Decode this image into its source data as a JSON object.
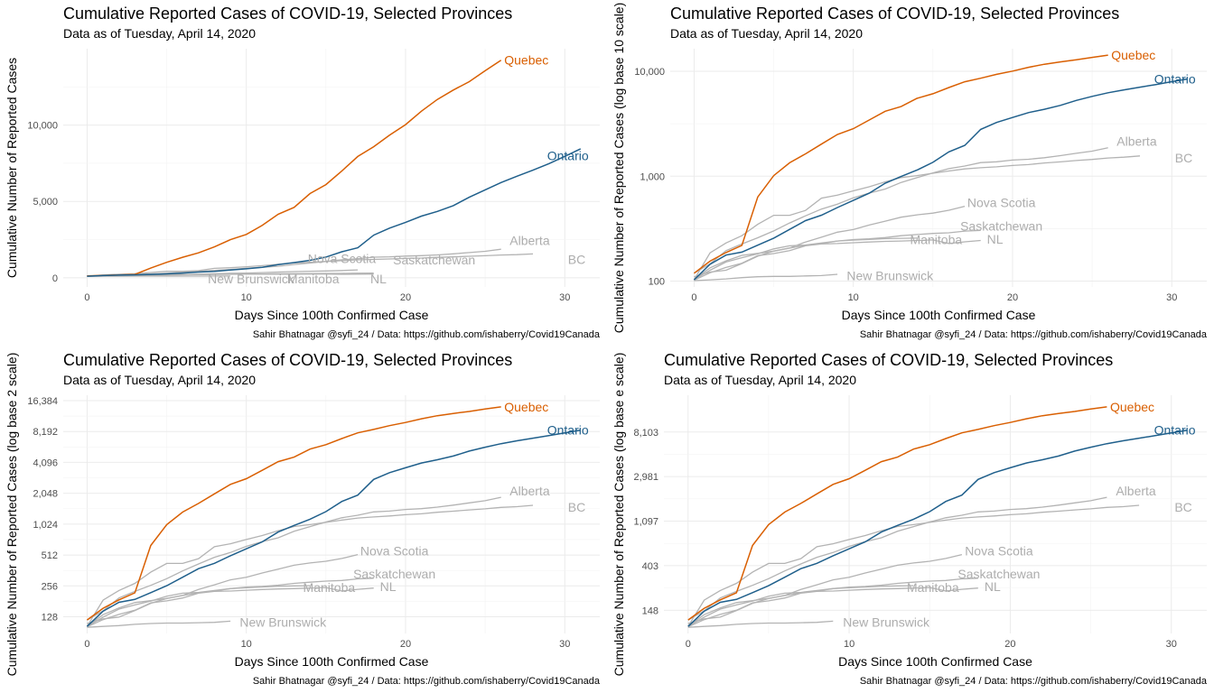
{
  "chart_data": [
    {
      "type": "line",
      "scale": "linear",
      "title": "Cumulative Reported Cases of COVID-19, Selected Provinces",
      "subtitle": "Data as of Tuesday, April 14, 2020",
      "xlabel": "Days Since 100th Confirmed Case",
      "ylabel": "Cumulative Number of Reported Cases",
      "caption": "Sahir Bhatnagar @syfi_24 / Data: https://github.com/ishaberry/Covid19Canada",
      "xlim": [
        -1.5,
        32.2
      ],
      "ylim": [
        -600,
        15000
      ],
      "xticks": [
        0,
        10,
        20,
        30
      ],
      "xtick_labels": [
        "0",
        "10",
        "20",
        "30"
      ],
      "yticks": [
        0,
        5000,
        10000
      ],
      "ytick_labels": [
        "0",
        "5,000",
        "10,000"
      ],
      "grid": true,
      "legend": "none (direct labels)",
      "label_positions": "linear"
    },
    {
      "type": "line",
      "scale": "log10",
      "title": "Cumulative Reported Cases of COVID-19, Selected Provinces",
      "subtitle": "Data as of Tuesday, April 14, 2020",
      "xlabel": "Days Since 100th Confirmed Case",
      "ylabel": "Cumulative Number of Reported Cases (log base 10 scale)",
      "caption": "Sahir Bhatnagar @syfi_24 / Data: https://github.com/ishaberry/Covid19Canada",
      "xlim": [
        -1.5,
        32.2
      ],
      "ylim": [
        88,
        16400
      ],
      "xticks": [
        0,
        10,
        20,
        30
      ],
      "xtick_labels": [
        "0",
        "10",
        "20",
        "30"
      ],
      "yticks": [
        100,
        1000,
        10000
      ],
      "ytick_labels": [
        "100",
        "1,000",
        "10,000"
      ],
      "grid": true,
      "legend": "none (direct labels)",
      "label_positions": "log"
    },
    {
      "type": "line",
      "scale": "log2",
      "title": "Cumulative Reported Cases of COVID-19, Selected Provinces",
      "subtitle": "Data as of Tuesday, April 14, 2020",
      "xlabel": "Days Since 100th Confirmed Case",
      "ylabel": "Cumulative Number of Reported Cases (log base 2 scale)",
      "caption": "Sahir Bhatnagar @syfi_24 / Data: https://github.com/ishaberry/Covid19Canada",
      "xlim": [
        -1.5,
        32.2
      ],
      "ylim": [
        88,
        18500
      ],
      "xticks": [
        0,
        10,
        20,
        30
      ],
      "xtick_labels": [
        "0",
        "10",
        "20",
        "30"
      ],
      "yticks": [
        128,
        256,
        512,
        1024,
        2048,
        4096,
        8192,
        16384
      ],
      "ytick_labels": [
        "128",
        "256",
        "512",
        "1,024",
        "2,048",
        "4,096",
        "8,192",
        "16,384"
      ],
      "grid": true,
      "legend": "none (direct labels)",
      "label_positions": "log"
    },
    {
      "type": "line",
      "scale": "ln",
      "title": "Cumulative Reported Cases of COVID-19, Selected Provinces",
      "subtitle": "Data as of Tuesday, April 14, 2020",
      "xlabel": "Days Since 100th Confirmed Case",
      "ylabel": "Cumulative Number of Reported Cases (log base e scale)",
      "caption": "Sahir Bhatnagar @syfi_24 / Data: https://github.com/ishaberry/Covid19Canada",
      "xlim": [
        -1.5,
        32.2
      ],
      "ylim": [
        88,
        18500
      ],
      "xticks": [
        0,
        10,
        20,
        30
      ],
      "xtick_labels": [
        "0",
        "10",
        "20",
        "30"
      ],
      "yticks": [
        148,
        403,
        1097,
        2981,
        8103
      ],
      "ytick_labels": [
        "148",
        "403",
        "1,097",
        "2,981",
        "8,103"
      ],
      "grid": true,
      "legend": "none (direct labels)",
      "label_positions": "log"
    }
  ],
  "series": [
    {
      "name": "Quebec",
      "color": "#d95f02",
      "highlight": true,
      "values": [
        119,
        155,
        187,
        219,
        634,
        1013,
        1342,
        1632,
        2021,
        2498,
        2840,
        3430,
        4162,
        4611,
        5518,
        6101,
        6997,
        7944,
        8580,
        9340,
        10031,
        10912,
        11677,
        12292,
        12846,
        13557,
        14248
      ]
    },
    {
      "name": "Ontario",
      "color": "#1f5f8b",
      "highlight": true,
      "values": [
        103,
        145,
        177,
        189,
        220,
        257,
        311,
        377,
        425,
        503,
        588,
        688,
        858,
        994,
        1144,
        1355,
        1706,
        1966,
        2793,
        3255,
        3630,
        4038,
        4347,
        4726,
        5276,
        5759,
        6237,
        6648,
        7049,
        7470,
        7953,
        8447
      ]
    },
    {
      "name": "Alberta",
      "color": "#b3b3b3",
      "highlight": false,
      "values": [
        119,
        146,
        195,
        226,
        259,
        301,
        358,
        419,
        486,
        542,
        621,
        690,
        754,
        871,
        968,
        1075,
        1181,
        1250,
        1348,
        1373,
        1423,
        1451,
        1500,
        1569,
        1651,
        1732,
        1870
      ]
    },
    {
      "name": "BC",
      "color": "#b3b3b3",
      "highlight": false,
      "values": [
        103,
        186,
        231,
        271,
        348,
        424,
        424,
        472,
        617,
        659,
        725,
        792,
        884,
        970,
        1013,
        1066,
        1121,
        1174,
        1203,
        1229,
        1266,
        1291,
        1336,
        1370,
        1410,
        1445,
        1490,
        1517,
        1561
      ]
    },
    {
      "name": "Nova Scotia",
      "color": "#b3b3b3",
      "highlight": false,
      "values": [
        110,
        122,
        127,
        147,
        173,
        193,
        207,
        236,
        262,
        293,
        310,
        342,
        373,
        407,
        428,
        445,
        474,
        517
      ]
    },
    {
      "name": "Saskatchewan",
      "color": "#b3b3b3",
      "highlight": false,
      "values": [
        104,
        134,
        156,
        176,
        184,
        193,
        206,
        220,
        228,
        241,
        249,
        253,
        260,
        271,
        278,
        285,
        289,
        300,
        304
      ]
    },
    {
      "name": "Manitoba",
      "color": "#b3b3b3",
      "highlight": false,
      "values": [
        103,
        127,
        152,
        167,
        182,
        203,
        217,
        221,
        231,
        241,
        246,
        250,
        254,
        256,
        257
      ]
    },
    {
      "name": "NL",
      "color": "#b3b3b3",
      "highlight": false,
      "values": [
        102,
        120,
        135,
        148,
        175,
        183,
        195,
        217,
        226,
        228,
        232,
        236,
        239,
        241,
        244,
        247,
        228,
        237,
        244
      ]
    },
    {
      "name": "New Brunswick",
      "color": "#b3b3b3",
      "highlight": false,
      "values": [
        101,
        103,
        105,
        108,
        110,
        111,
        111,
        112,
        113,
        116
      ]
    }
  ],
  "series_labels": {
    "linear": {
      "Quebec": [
        26.2,
        14248,
        "start"
      ],
      "Ontario": [
        31.5,
        8000,
        "end"
      ],
      "Alberta": [
        27.8,
        2450,
        "middle"
      ],
      "BC": [
        30.2,
        1200,
        "start"
      ],
      "Nova Scotia": [
        16.0,
        1250,
        "middle"
      ],
      "Saskatchewan": [
        21.8,
        1180,
        "middle"
      ],
      "Manitoba": [
        14.2,
        -80,
        "middle"
      ],
      "NL": [
        18.3,
        -80,
        "middle"
      ],
      "New Brunswick": [
        10.3,
        -80,
        "middle"
      ]
    },
    "log": {
      "Quebec": [
        26.2,
        14248,
        "start"
      ],
      "Ontario": [
        31.5,
        8447,
        "end"
      ],
      "Alberta": [
        27.8,
        2150,
        "middle"
      ],
      "BC": [
        30.2,
        1500,
        "start"
      ],
      "Nova Scotia": [
        19.3,
        560,
        "middle"
      ],
      "Saskatchewan": [
        19.3,
        335,
        "middle"
      ],
      "Manitoba": [
        15.2,
        248,
        "middle"
      ],
      "NL": [
        18.9,
        252,
        "middle"
      ],
      "New Brunswick": [
        12.3,
        113,
        "middle"
      ]
    }
  }
}
